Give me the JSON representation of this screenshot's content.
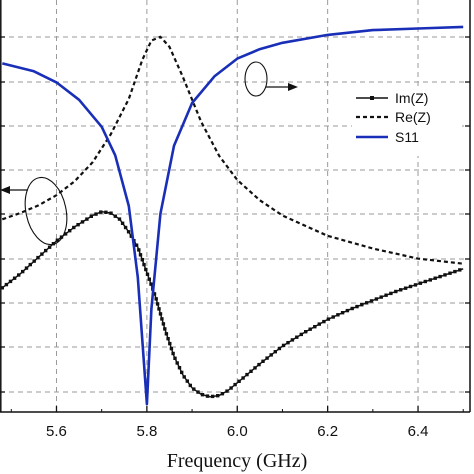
{
  "chart_data": {
    "type": "line",
    "title": "",
    "xlabel": "Frequency (GHz)",
    "xlim": [
      5.475,
      6.515
    ],
    "xticks": [
      5.6,
      5.8,
      6.0,
      6.2,
      6.4
    ],
    "xtick_labels": [
      "5.6",
      "5.8",
      "6.0",
      "6.2",
      "6.4"
    ],
    "grid": true,
    "legend_position": "right",
    "series": [
      {
        "name": "Im(Z)",
        "style": "solid-square-markers",
        "color": "#111111",
        "points": [
          [
            5.48,
            -0.52
          ],
          [
            5.52,
            -0.41
          ],
          [
            5.56,
            -0.28
          ],
          [
            5.6,
            -0.15
          ],
          [
            5.64,
            -0.04
          ],
          [
            5.68,
            0.05
          ],
          [
            5.7,
            0.08
          ],
          [
            5.72,
            0.07
          ],
          [
            5.74,
            0.02
          ],
          [
            5.76,
            -0.08
          ],
          [
            5.78,
            -0.2
          ],
          [
            5.8,
            -0.4
          ],
          [
            5.82,
            -0.6
          ],
          [
            5.84,
            -0.85
          ],
          [
            5.86,
            -1.06
          ],
          [
            5.88,
            -1.21
          ],
          [
            5.9,
            -1.31
          ],
          [
            5.92,
            -1.36
          ],
          [
            5.94,
            -1.38
          ],
          [
            5.96,
            -1.37
          ],
          [
            5.98,
            -1.33
          ],
          [
            6.0,
            -1.27
          ],
          [
            6.05,
            -1.12
          ],
          [
            6.1,
            -0.98
          ],
          [
            6.15,
            -0.87
          ],
          [
            6.2,
            -0.77
          ],
          [
            6.25,
            -0.69
          ],
          [
            6.3,
            -0.62
          ],
          [
            6.35,
            -0.55
          ],
          [
            6.4,
            -0.49
          ],
          [
            6.45,
            -0.43
          ],
          [
            6.5,
            -0.37
          ]
        ]
      },
      {
        "name": "Re(Z)",
        "style": "dashed",
        "color": "#111111",
        "points": [
          [
            5.48,
            0.02
          ],
          [
            5.52,
            0.07
          ],
          [
            5.56,
            0.13
          ],
          [
            5.6,
            0.21
          ],
          [
            5.64,
            0.32
          ],
          [
            5.68,
            0.47
          ],
          [
            5.72,
            0.69
          ],
          [
            5.76,
            0.97
          ],
          [
            5.79,
            1.28
          ],
          [
            5.81,
            1.43
          ],
          [
            5.83,
            1.46
          ],
          [
            5.85,
            1.38
          ],
          [
            5.88,
            1.14
          ],
          [
            5.92,
            0.79
          ],
          [
            5.96,
            0.52
          ],
          [
            6.0,
            0.33
          ],
          [
            6.05,
            0.17
          ],
          [
            6.1,
            0.05
          ],
          [
            6.2,
            -0.11
          ],
          [
            6.3,
            -0.21
          ],
          [
            6.4,
            -0.29
          ],
          [
            6.5,
            -0.33
          ]
        ]
      },
      {
        "name": "S11",
        "style": "solid",
        "color": "#1a2fb8",
        "points": [
          [
            5.48,
            -5.0
          ],
          [
            5.55,
            -5.5
          ],
          [
            5.6,
            -6.2
          ],
          [
            5.65,
            -7.3
          ],
          [
            5.7,
            -9.0
          ],
          [
            5.73,
            -10.8
          ],
          [
            5.76,
            -14.0
          ],
          [
            5.78,
            -18.5
          ],
          [
            5.8,
            -26.5
          ],
          [
            5.81,
            -20.5
          ],
          [
            5.83,
            -14.5
          ],
          [
            5.86,
            -10.2
          ],
          [
            5.9,
            -7.5
          ],
          [
            5.95,
            -5.8
          ],
          [
            6.0,
            -4.7
          ],
          [
            6.05,
            -4.1
          ],
          [
            6.1,
            -3.7
          ],
          [
            6.2,
            -3.2
          ],
          [
            6.3,
            -2.9
          ],
          [
            6.4,
            -2.8
          ],
          [
            6.5,
            -2.7
          ]
        ]
      }
    ]
  }
}
